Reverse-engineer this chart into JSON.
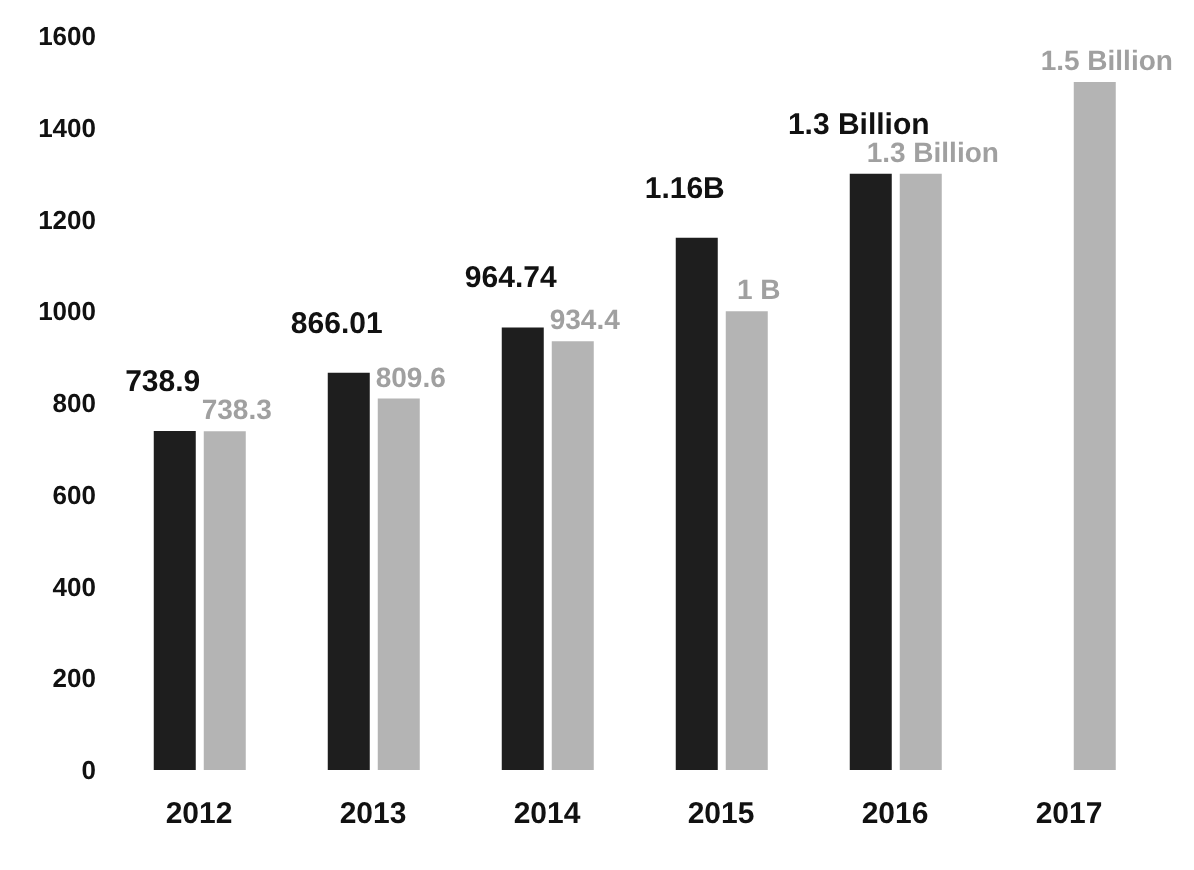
{
  "chart_data": {
    "type": "bar",
    "categories": [
      "2012",
      "2013",
      "2014",
      "2015",
      "2016",
      "2017"
    ],
    "series": [
      {
        "color": "#1e1e1e",
        "values": [
          738.9,
          866.01,
          964.74,
          1160,
          1300,
          null
        ],
        "value_labels": [
          "738.9",
          "866.01",
          "964.74",
          null,
          null,
          null
        ]
      },
      {
        "color": "#b4b4b4",
        "values": [
          738.3,
          809.6,
          934.4,
          1000,
          1300,
          1500
        ],
        "value_labels": [
          "738.3",
          "809.6",
          "934.4",
          null,
          null,
          null
        ]
      }
    ],
    "annotations": [
      {
        "text": "1.16B",
        "x": "2015",
        "y": 1160
      },
      {
        "text": "1 B",
        "x": "2015",
        "y": 1000
      },
      {
        "text": "1.3 Billion",
        "x": "2016",
        "y": 1300
      },
      {
        "text": "1.3 Billion",
        "x": "2016",
        "y": 1300
      },
      {
        "text": "1.5 Billion",
        "x": "2017",
        "y": 1500
      }
    ],
    "ylim": [
      0,
      1600
    ],
    "yticks": [
      0,
      200,
      400,
      600,
      800,
      1000,
      1200,
      1400,
      1600
    ],
    "grid": false,
    "legend": false
  }
}
